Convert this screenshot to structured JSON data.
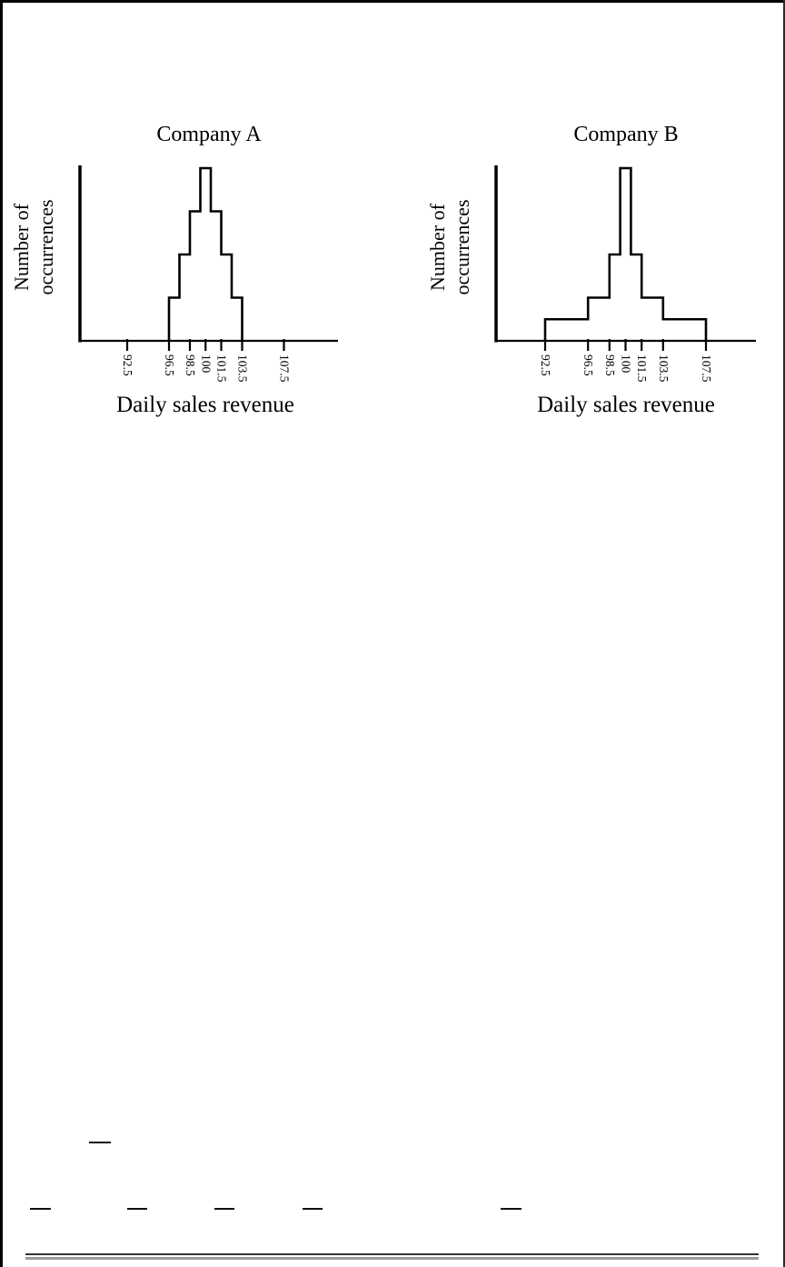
{
  "page": {
    "background": "#ffffff",
    "ink_color": "#000000",
    "description": "Scanned textbook page showing two step-histogram figures comparing daily sales revenue distributions"
  },
  "figure": {
    "charts": [
      {
        "title": "Company A",
        "ylabel_lines": [
          "Number of",
          "occurrences"
        ],
        "xlabel": "Daily sales revenue"
      },
      {
        "title": "Company B",
        "ylabel_lines": [
          "Number of",
          "occurrences"
        ],
        "xlabel": "Daily sales revenue"
      }
    ]
  },
  "chart_data": [
    {
      "type": "line",
      "subtype": "step-histogram-outline",
      "title": "Company A",
      "xlabel": "Daily sales revenue",
      "ylabel": "Number of occurrences",
      "x_tick_labels": [
        "92.5",
        "96.5",
        "98.5",
        "100",
        "101.5",
        "103.5",
        "107.5"
      ],
      "x_tick_values": [
        92.5,
        96.5,
        98.5,
        100,
        101.5,
        103.5,
        107.5
      ],
      "bin_edges": [
        96.5,
        97.5,
        98.5,
        99.5,
        100.5,
        101.5,
        102.5,
        103.5
      ],
      "bin_heights": [
        1,
        2,
        3,
        4,
        3,
        2,
        1
      ],
      "xlim": [
        88,
        112.5
      ],
      "ylim": [
        0,
        4.2
      ],
      "y_tick_labels": [],
      "grid": false,
      "legend": false
    },
    {
      "type": "line",
      "subtype": "step-histogram-outline",
      "title": "Company B",
      "xlabel": "Daily sales revenue",
      "ylabel": "Number of occurrences",
      "x_tick_labels": [
        "92.5",
        "96.5",
        "98.5",
        "100",
        "101.5",
        "103.5",
        "107.5"
      ],
      "x_tick_values": [
        92.5,
        96.5,
        98.5,
        100,
        101.5,
        103.5,
        107.5
      ],
      "bin_edges": [
        92.5,
        96.5,
        98.5,
        99.5,
        100.5,
        101.5,
        103.5,
        107.5
      ],
      "bin_heights": [
        0.5,
        1,
        2,
        4,
        2,
        1,
        0.5
      ],
      "xlim": [
        88,
        112.5
      ],
      "ylim": [
        0,
        4.2
      ],
      "y_tick_labels": [],
      "grid": false,
      "legend": false
    }
  ]
}
